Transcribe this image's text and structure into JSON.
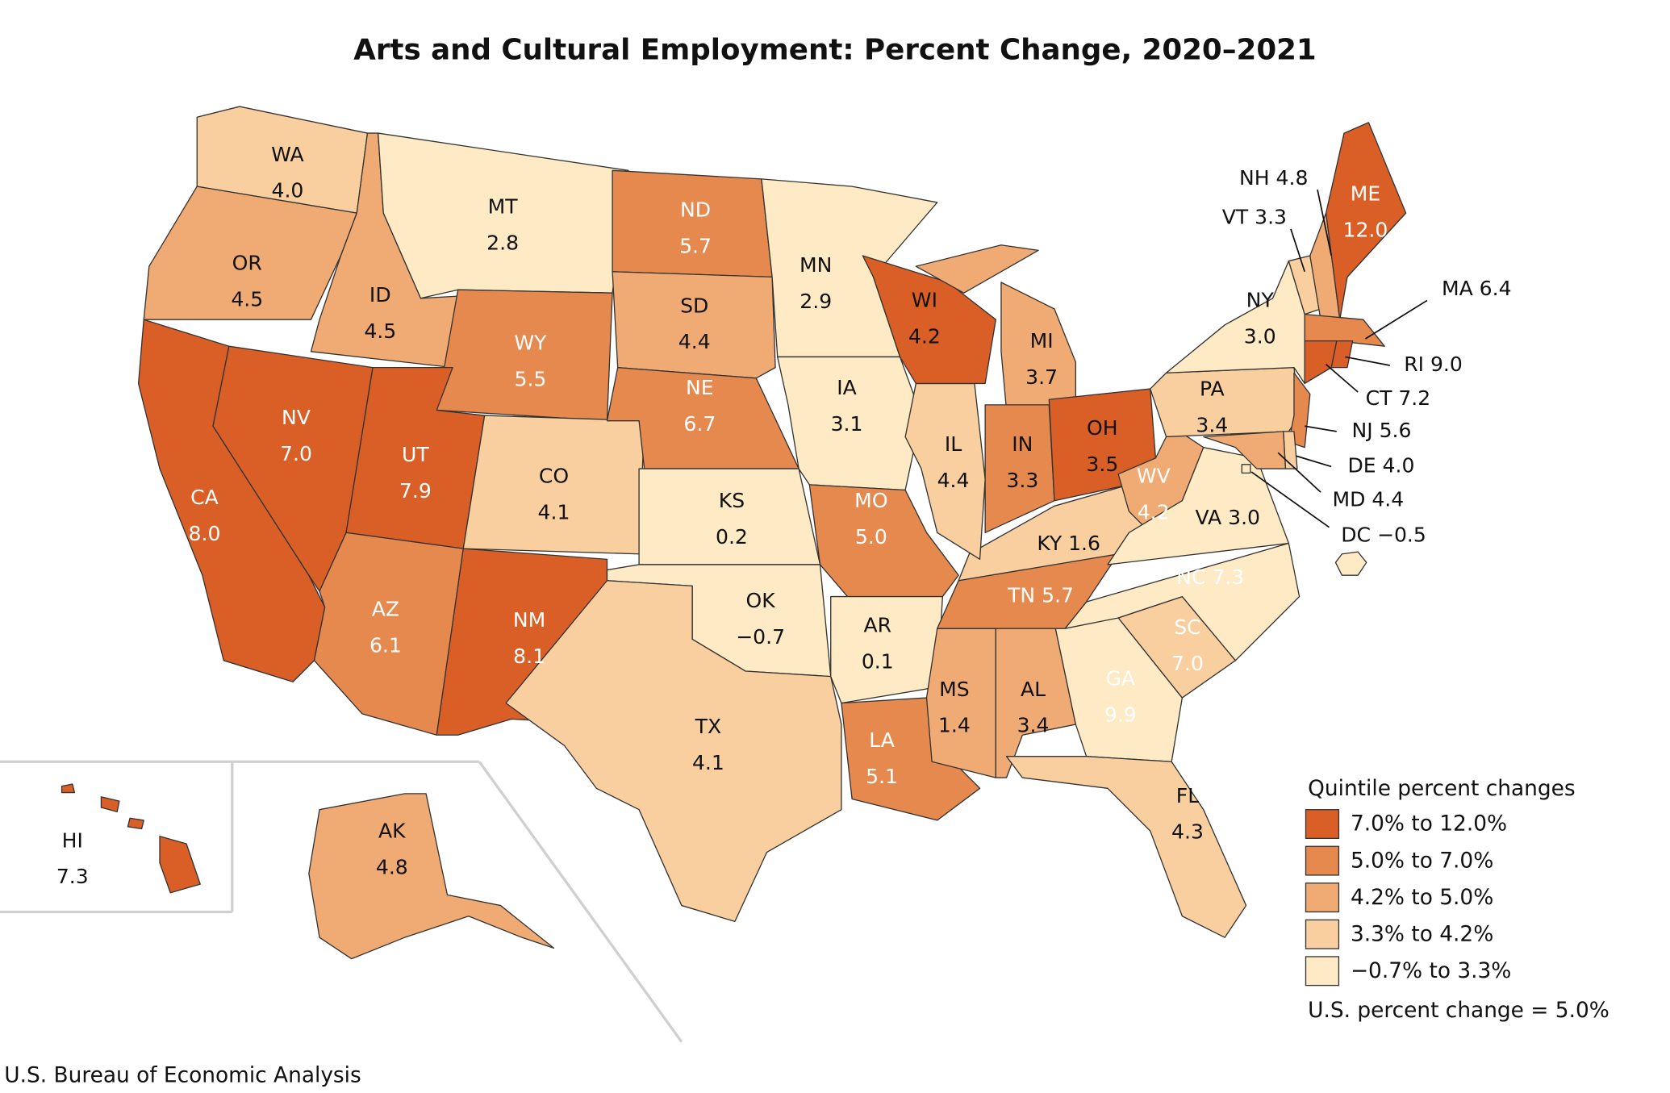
{
  "chart_data": {
    "type": "choropleth",
    "title": "Arts and Cultural Employment: Percent Change, 2020–2021",
    "categories": [
      "WA",
      "OR",
      "CA",
      "ID",
      "NV",
      "MT",
      "WY",
      "UT",
      "AZ",
      "CO",
      "NM",
      "ND",
      "SD",
      "NE",
      "KS",
      "OK",
      "TX",
      "MN",
      "IA",
      "MO",
      "AR",
      "LA",
      "WI",
      "IL",
      "MS",
      "MI",
      "IN",
      "KY",
      "TN",
      "AL",
      "OH",
      "GA",
      "FL",
      "SC",
      "NC",
      "WV",
      "VA",
      "PA",
      "NY",
      "VT",
      "NH",
      "ME",
      "MA",
      "RI",
      "CT",
      "NJ",
      "DE",
      "MD",
      "DC",
      "AK",
      "HI"
    ],
    "values": [
      4.0,
      4.5,
      8.0,
      4.5,
      7.0,
      2.8,
      5.5,
      7.9,
      6.1,
      4.1,
      8.1,
      5.7,
      4.4,
      6.7,
      0.2,
      -0.7,
      4.1,
      2.9,
      3.1,
      5.0,
      0.1,
      5.1,
      4.2,
      4.4,
      1.4,
      3.7,
      3.3,
      1.6,
      5.7,
      3.4,
      3.5,
      9.9,
      4.3,
      7.0,
      7.3,
      4.2,
      3.0,
      3.4,
      3.0,
      3.3,
      4.8,
      12.0,
      6.4,
      9.0,
      7.2,
      5.6,
      4.0,
      4.4,
      -0.5,
      4.8,
      7.3
    ],
    "value_labels": [
      "4.0",
      "4.5",
      "8.0",
      "4.5",
      "7.0",
      "2.8",
      "5.5",
      "7.9",
      "6.1",
      "4.1",
      "8.1",
      "5.7",
      "4.4",
      "6.7",
      "0.2",
      "−0.7",
      "4.1",
      "2.9",
      "3.1",
      "5.0",
      "0.1",
      "5.1",
      "4.2",
      "4.4",
      "1.4",
      "3.7",
      "3.3",
      "1.6",
      "5.7",
      "3.4",
      "3.5",
      "9.9",
      "4.3",
      "7.0",
      "7.3",
      "4.2",
      "3.0",
      "3.4",
      "3.0",
      "3.3",
      "4.8",
      "12.0",
      "6.4",
      "9.0",
      "7.2",
      "5.6",
      "4.0",
      "4.4",
      "−0.5",
      "4.8",
      "7.3"
    ],
    "colors": [
      "#f9cfa0",
      "#f0ab74",
      "#d95f27",
      "#f0ab74",
      "#d95f27",
      "#feeac4",
      "#e6894f",
      "#d95f27",
      "#e6894f",
      "#f9cfa0",
      "#d95f27",
      "#e6894f",
      "#f0ab74",
      "#e6894f",
      "#feeac4",
      "#feeac4",
      "#f9cfa0",
      "#feeac4",
      "#feeac4",
      "#e6894f",
      "#feeac4",
      "#e6894f",
      "#f0ab74",
      "#f0ab74",
      "#feeac4",
      "#f9cfa0",
      "#f9cfa0",
      "#feeac4",
      "#e6894f",
      "#f9cfa0",
      "#f9cfa0",
      "#d95f27",
      "#f0ab74",
      "#e6894f",
      "#d95f27",
      "#f0ab74",
      "#feeac4",
      "#f9cfa0",
      "#feeac4",
      "#f9cfa0",
      "#f0ab74",
      "#d95f27",
      "#e6894f",
      "#d95f27",
      "#d95f27",
      "#e6894f",
      "#f9cfa0",
      "#f0ab74",
      "#feeac4",
      "#f0ab74",
      "#d95f27"
    ],
    "legend": {
      "title": "Quintile percent changes",
      "entries": [
        {
          "label": "7.0% to 12.0%",
          "color": "#d95f27"
        },
        {
          "label": "5.0% to 7.0%",
          "color": "#e6894f"
        },
        {
          "label": "4.2% to 5.0%",
          "color": "#f0ab74"
        },
        {
          "label": "3.3% to 4.2%",
          "color": "#f9cfa0"
        },
        {
          "label": "−0.7% to 3.3%",
          "color": "#feeac4"
        }
      ],
      "note": "U.S. percent change = 5.0%"
    }
  },
  "source": "U.S. Bureau of Economic Analysis"
}
